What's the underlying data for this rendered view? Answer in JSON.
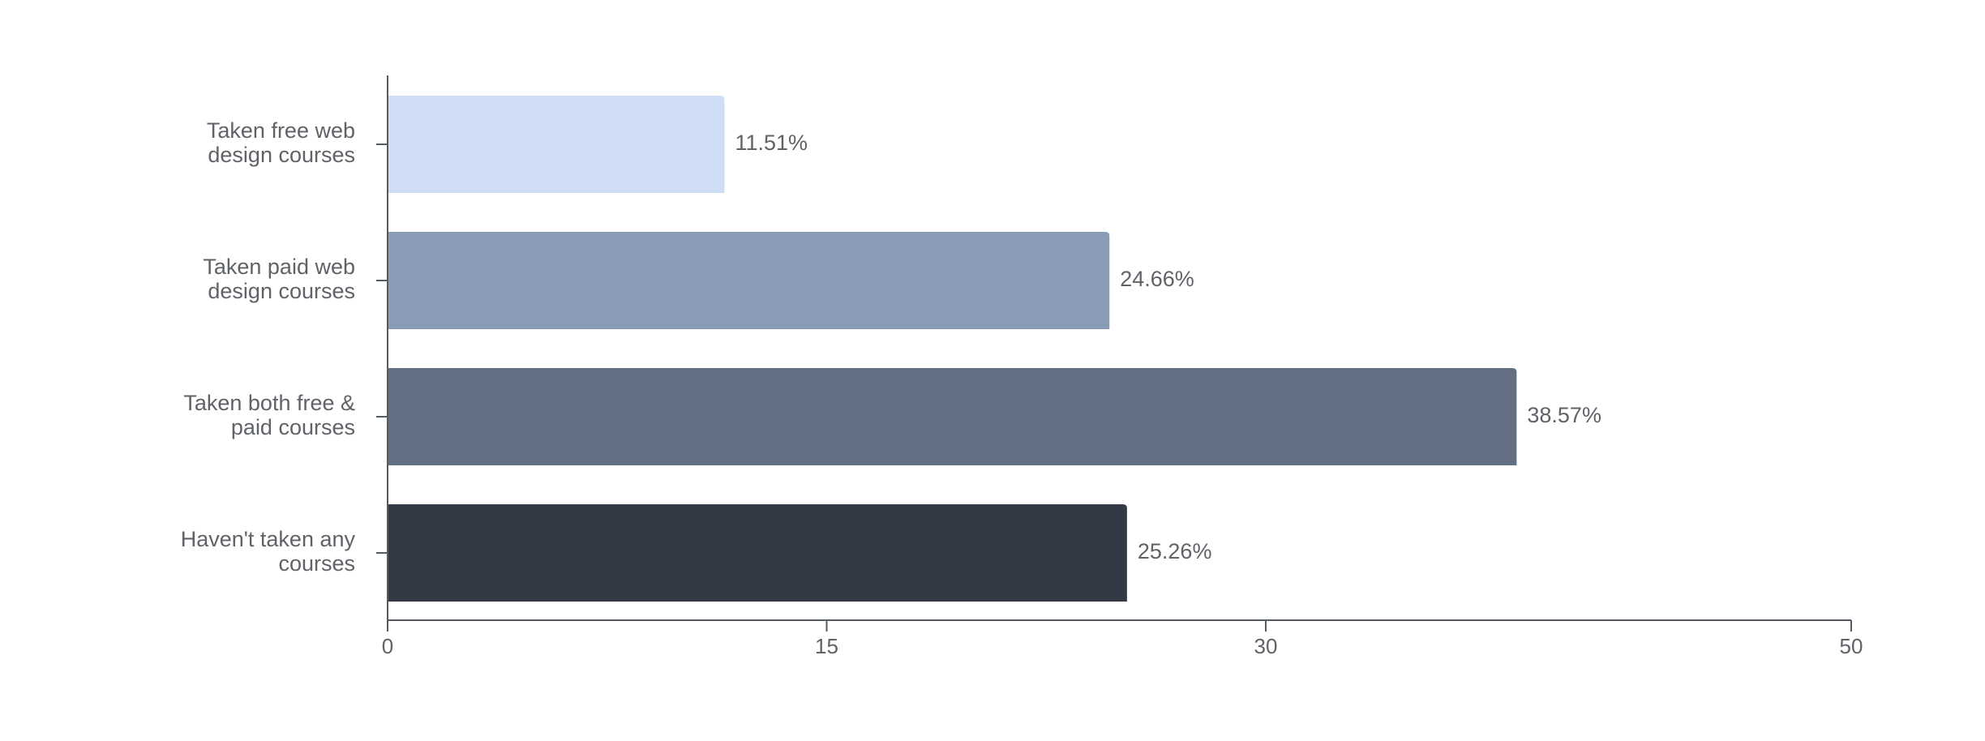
{
  "chart_data": {
    "type": "bar",
    "orientation": "horizontal",
    "categories": [
      [
        "Taken free web",
        "design courses"
      ],
      [
        "Taken paid web",
        "design courses"
      ],
      [
        "Taken both free &",
        "paid courses"
      ],
      [
        "Haven't taken any",
        "courses"
      ]
    ],
    "values": [
      11.51,
      24.66,
      38.57,
      25.26
    ],
    "value_labels": [
      "11.51%",
      "24.66%",
      "38.57%",
      "25.26%"
    ],
    "colors": [
      "#cfdef4",
      "#8a9bb6",
      "#636f83",
      "#343a45"
    ],
    "xlim": [
      0,
      50
    ],
    "xticks": [
      0,
      15,
      30,
      50
    ],
    "title": "",
    "xlabel": "",
    "ylabel": "",
    "grid": false,
    "legend": "none"
  }
}
